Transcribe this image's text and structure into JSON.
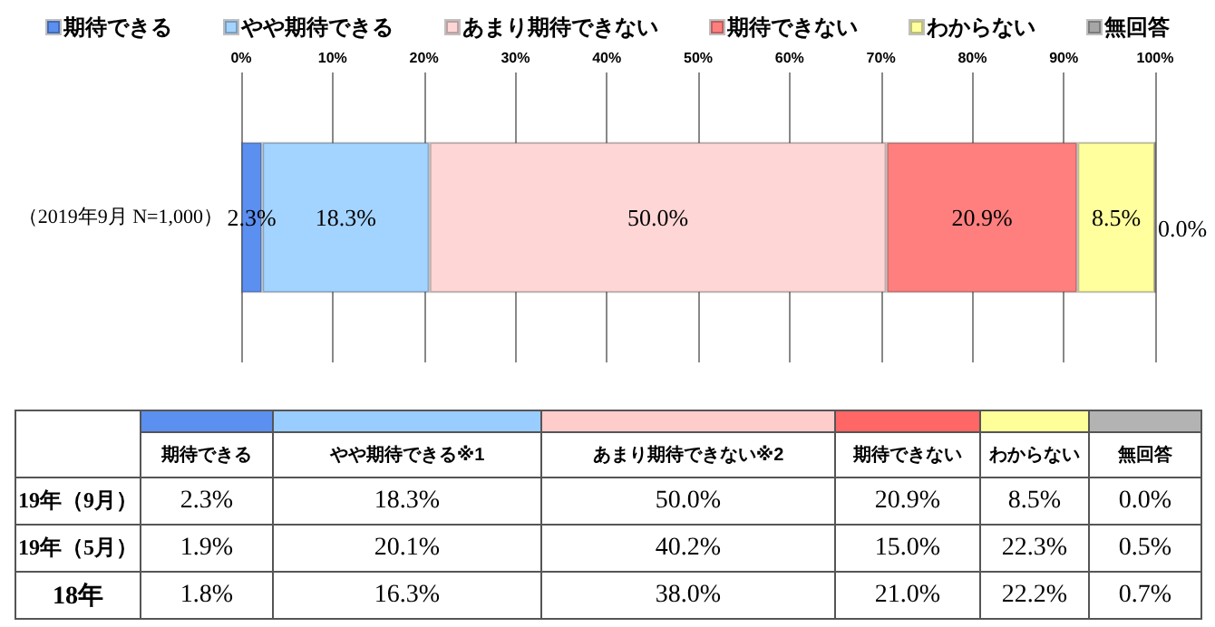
{
  "chart_data": [
    {
      "type": "bar",
      "stacked": true,
      "orientation": "horizontal",
      "categories": [
        "（2019年9月 N=1,000）"
      ],
      "series": [
        {
          "name": "期待できる",
          "color": "#5b8ff0",
          "values": [
            2.3
          ],
          "value_labels": [
            "2.3%"
          ]
        },
        {
          "name": "やや期待できる",
          "color": "#a3d3ff",
          "values": [
            18.3
          ],
          "value_labels": [
            "18.3%"
          ]
        },
        {
          "name": "あまり期待できない",
          "color": "#ffd6d6",
          "values": [
            50.0
          ],
          "value_labels": [
            "50.0%"
          ]
        },
        {
          "name": "期待できない",
          "color": "#ff7f7f",
          "values": [
            20.9
          ],
          "value_labels": [
            "20.9%"
          ]
        },
        {
          "name": "わからない",
          "color": "#ffff9e",
          "values": [
            8.5
          ],
          "value_labels": [
            "8.5%"
          ]
        },
        {
          "name": "無回答",
          "color": "#a6a6a6",
          "values": [
            0.0
          ],
          "value_labels": [
            "0.0%"
          ]
        }
      ],
      "xlim": [
        0,
        100
      ],
      "xticks": [
        {
          "value": 0,
          "label": "0%"
        },
        {
          "value": 10,
          "label": "10%"
        },
        {
          "value": 20,
          "label": "20%"
        },
        {
          "value": 30,
          "label": "30%"
        },
        {
          "value": 40,
          "label": "40%"
        },
        {
          "value": 50,
          "label": "50%"
        },
        {
          "value": 60,
          "label": "60%"
        },
        {
          "value": 70,
          "label": "70%"
        },
        {
          "value": 80,
          "label": "80%"
        },
        {
          "value": 90,
          "label": "90%"
        },
        {
          "value": 100,
          "label": "100%"
        }
      ],
      "grid": "x",
      "legend": "top"
    },
    {
      "type": "other",
      "categories": [
        "期待できる",
        "やや期待できる※1",
        "あまり期待できない※2",
        "期待できない",
        "わからない",
        "無回答"
      ],
      "colors": [
        "#5b8ff0",
        "#99ccff",
        "#ffcccc",
        "#ff6666",
        "#ffff99",
        "#b3b3b3"
      ],
      "y_categories": [
        "19年（9月）",
        "19年（5月）",
        "18年"
      ],
      "cell_labels": [
        [
          "2.3%",
          "18.3%",
          "50.0%",
          "20.9%",
          "8.5%",
          "0.0%"
        ],
        [
          "1.9%",
          "20.1%",
          "40.2%",
          "15.0%",
          "22.3%",
          "0.5%"
        ],
        [
          "1.8%",
          "16.3%",
          "38.0%",
          "21.0%",
          "22.2%",
          "0.7%"
        ]
      ]
    }
  ]
}
